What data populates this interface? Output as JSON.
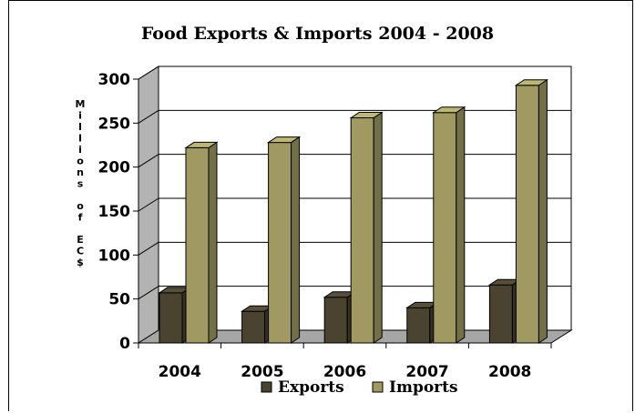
{
  "chart_data": {
    "type": "bar",
    "title": "Food Exports & Imports 2004 - 2008",
    "ylabel": "Millions of EC$",
    "categories": [
      "2004",
      "2005",
      "2006",
      "2007",
      "2008"
    ],
    "series": [
      {
        "name": "Exports",
        "values": [
          57,
          36,
          52,
          40,
          66
        ],
        "color": "#4a4330"
      },
      {
        "name": "Imports",
        "values": [
          222,
          228,
          256,
          262,
          293
        ],
        "color": "#a09a62"
      }
    ],
    "ylim": [
      0,
      300
    ],
    "yticks": [
      0,
      50,
      100,
      150,
      200,
      250,
      300
    ],
    "grid": true,
    "legend_position": "bottom",
    "style": "3d",
    "wall_color": "#b3b3b3",
    "floor_color": "#a6a6a6"
  }
}
